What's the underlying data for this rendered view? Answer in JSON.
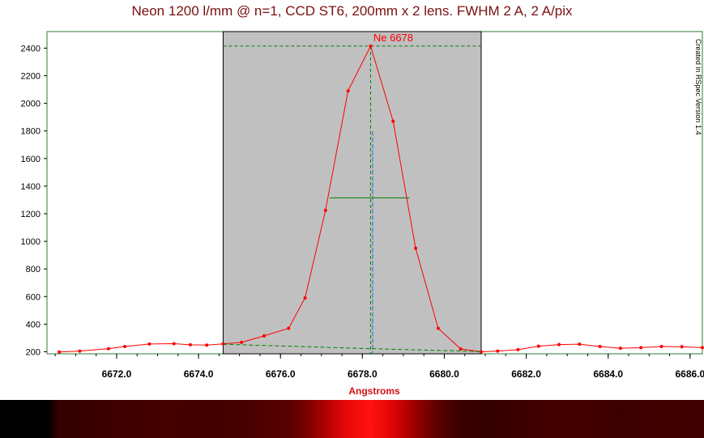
{
  "chart_data": {
    "type": "line",
    "title": "Neon 1200 l/mm @ n=1, CCD ST6, 200mm x 2 lens. FWHM 2 A, 2 A/pix",
    "xlabel": "Angstroms",
    "ylabel": "",
    "xlim": [
      6670.3,
      6686.3
    ],
    "ylim": [
      185,
      2520
    ],
    "x_ticks": [
      "6672.0",
      "6674.0",
      "6676.0",
      "6678.0",
      "6680.0",
      "6682.0",
      "6684.0",
      "6686.0"
    ],
    "y_ticks": [
      "200",
      "400",
      "600",
      "800",
      "1000",
      "1200",
      "1400",
      "1600",
      "1800",
      "2000",
      "2200",
      "2400"
    ],
    "annotation": "Ne 6678",
    "watermark": "Created in RSpec Version 1.4",
    "series": [
      {
        "color": "#ff0000",
        "x": [
          6670.6,
          6671.1,
          6671.8,
          6672.2,
          6672.8,
          6673.4,
          6673.8,
          6674.2,
          6674.6,
          6675.05,
          6675.6,
          6676.2,
          6676.6,
          6677.1,
          6677.65,
          6678.2,
          6678.75,
          6679.3,
          6679.85,
          6680.4,
          6680.9,
          6681.3,
          6681.8,
          6682.3,
          6682.8,
          6683.3,
          6683.8,
          6684.3,
          6684.8,
          6685.3,
          6685.8,
          6686.3
        ],
        "y": [
          198,
          205,
          222,
          238,
          256,
          258,
          250,
          248,
          257,
          268,
          315,
          370,
          590,
          1225,
          2090,
          2415,
          1870,
          950,
          370,
          220,
          200,
          205,
          215,
          240,
          252,
          255,
          238,
          225,
          230,
          238,
          236,
          230
        ]
      },
      {
        "color": "#008000",
        "style": "dashed",
        "x": [
          6674.6,
          6675.5,
          6676.5,
          6677.5,
          6678.5,
          6679.5,
          6680.5,
          6680.9
        ],
        "y": [
          255,
          246,
          238,
          228,
          220,
          212,
          205,
          200
        ]
      }
    ],
    "selection_range": [
      6674.6,
      6680.9
    ],
    "peak": {
      "x": 6678.2,
      "y": 2415
    },
    "fwhm": {
      "x1": 6677.2,
      "x2": 6679.15,
      "y": 1315
    },
    "centroid_line": {
      "x": 6678.25,
      "y_top": 1800
    },
    "colors": {
      "selection_fill": "#c0c0c0",
      "data_line": "#ff0000",
      "marker_line": "#008000",
      "centroid_line": "#1e6ecc",
      "title_color": "#7a1010",
      "axis_label_color": "#d01010"
    }
  }
}
